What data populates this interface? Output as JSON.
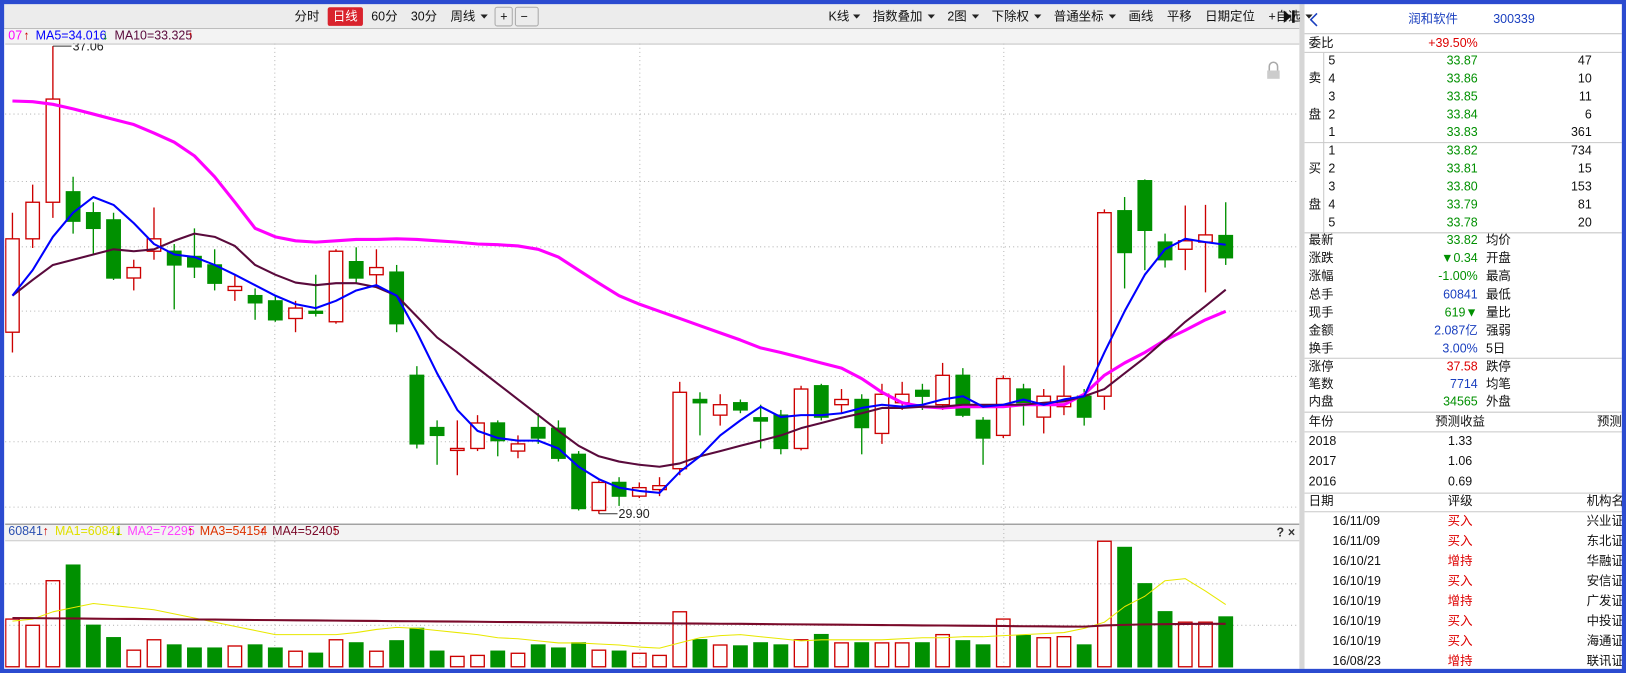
{
  "toolbar": {
    "active": 1,
    "left": [
      {
        "text": "分时"
      },
      {
        "text": "日线"
      },
      {
        "text": "60分"
      },
      {
        "text": "30分"
      },
      {
        "text": "周线",
        "menu": true
      },
      {
        "text": "+"
      },
      {
        "text": "−"
      }
    ],
    "right": [
      {
        "text": "K线",
        "menu": true
      },
      {
        "text": "指数叠加",
        "menu": true
      },
      {
        "text": "2图",
        "menu": true
      },
      {
        "text": "下除权",
        "menu": true
      },
      {
        "text": "普通坐标",
        "menu": true
      },
      {
        "text": "画线"
      },
      {
        "text": "平移"
      },
      {
        "text": "日期定位"
      },
      {
        "text": "+自选",
        "menu": true
      }
    ]
  },
  "chart_data": [
    {
      "type": "candlestick",
      "up_color": "#cc0000",
      "down_color": "#009000",
      "ylim": [
        29.78,
        37.1
      ],
      "high_label": "37.06",
      "low_label": "29.90",
      "legend": [
        {
          "text": "07",
          "arrow": "↑",
          "color": "#ff00ff",
          "arrow_color": "#cc0000"
        },
        {
          "text": "MA5=34.016",
          "arrow": "↓",
          "color": "#0000ff",
          "arrow_color": "#009000"
        },
        {
          "text": "MA10=33.325",
          "arrow": "↑",
          "color": "#5a0a3c",
          "arrow_color": "#cc0000"
        }
      ],
      "open": [
        32.68,
        34.11,
        34.67,
        34.83,
        34.51,
        34.4,
        33.51,
        33.92,
        33.92,
        33.84,
        33.71,
        33.32,
        33.24,
        33.16,
        32.89,
        33.0,
        32.84,
        33.76,
        33.56,
        33.6,
        32.02,
        31.22,
        30.87,
        30.9,
        31.29,
        30.86,
        31.22,
        31.21,
        30.81,
        29.95,
        30.38,
        30.17,
        30.27,
        30.59,
        31.65,
        31.41,
        31.6,
        31.37,
        31.41,
        30.9,
        31.86,
        31.57,
        31.65,
        31.13,
        31.6,
        31.79,
        31.57,
        32.02,
        31.33,
        31.1,
        31.81,
        31.38,
        31.54,
        31.7,
        31.7,
        34.54,
        35.0,
        34.06,
        33.95,
        34.06,
        34.16
      ],
      "high": [
        34.51,
        34.94,
        37.06,
        35.06,
        34.67,
        34.51,
        33.79,
        34.59,
        34.03,
        34.27,
        33.95,
        33.56,
        33.35,
        33.24,
        33.16,
        33.56,
        33.95,
        33.98,
        33.95,
        33.71,
        32.16,
        31.33,
        31.33,
        31.41,
        31.33,
        31.1,
        31.44,
        31.33,
        30.86,
        30.41,
        30.46,
        30.38,
        30.46,
        31.92,
        31.76,
        31.73,
        31.65,
        31.57,
        31.49,
        31.86,
        31.89,
        31.81,
        31.73,
        31.89,
        31.92,
        31.89,
        32.21,
        32.13,
        31.38,
        32.02,
        31.89,
        31.81,
        32.17,
        31.81,
        34.56,
        34.75,
        35.02,
        34.19,
        34.62,
        34.63,
        34.67
      ],
      "low": [
        32.37,
        33.97,
        34.43,
        34.19,
        33.87,
        33.48,
        33.32,
        33.79,
        33.03,
        33.51,
        33.32,
        33.16,
        32.87,
        32.84,
        32.68,
        32.92,
        32.81,
        33.44,
        33.4,
        32.68,
        30.9,
        30.65,
        30.49,
        30.86,
        30.78,
        30.75,
        30.97,
        30.7,
        29.95,
        29.9,
        30.02,
        30.14,
        30.17,
        30.49,
        31.1,
        31.25,
        31.44,
        30.9,
        30.81,
        30.87,
        31.33,
        31.44,
        30.81,
        30.97,
        31.49,
        31.49,
        31.49,
        31.38,
        30.65,
        31.06,
        31.25,
        31.13,
        31.41,
        31.25,
        31.49,
        33.35,
        33.63,
        33.67,
        33.63,
        33.29,
        33.71
      ],
      "close": [
        34.11,
        34.67,
        36.25,
        34.38,
        34.27,
        33.51,
        33.67,
        34.11,
        33.71,
        33.68,
        33.43,
        33.38,
        33.13,
        32.87,
        33.05,
        32.97,
        33.92,
        33.51,
        33.67,
        32.81,
        30.97,
        31.1,
        30.9,
        31.29,
        31.02,
        30.97,
        31.06,
        30.75,
        29.98,
        30.38,
        30.17,
        30.3,
        30.33,
        31.76,
        31.6,
        31.57,
        31.49,
        31.32,
        30.9,
        31.81,
        31.38,
        31.65,
        31.22,
        31.73,
        31.73,
        31.7,
        32.02,
        31.41,
        31.06,
        31.97,
        31.6,
        31.7,
        31.7,
        31.38,
        34.51,
        33.9,
        34.24,
        33.79,
        34.08,
        34.17,
        33.82
      ],
      "lines": [
        {
          "color": "#ff00ff",
          "width": 3,
          "values": [
            36.22,
            36.21,
            36.17,
            36.1,
            36.02,
            35.94,
            35.86,
            35.73,
            35.59,
            35.38,
            35.06,
            34.67,
            34.27,
            34.14,
            34.08,
            34.06,
            34.08,
            34.1,
            34.1,
            34.11,
            34.1,
            34.08,
            34.06,
            34.03,
            34.02,
            34.0,
            33.95,
            33.83,
            33.63,
            33.43,
            33.24,
            33.11,
            33.0,
            32.89,
            32.78,
            32.67,
            32.56,
            32.44,
            32.37,
            32.29,
            32.21,
            32.13,
            31.97,
            31.76,
            31.6,
            31.54,
            31.52,
            31.54,
            31.54,
            31.54,
            31.57,
            31.57,
            31.57,
            31.73,
            32.02,
            32.21,
            32.37,
            32.56,
            32.71,
            32.87,
            33.0
          ]
        },
        {
          "color": "#5a0a3c",
          "width": 2,
          "values": [
            33.24,
            33.48,
            33.71,
            33.79,
            33.87,
            33.95,
            33.92,
            33.95,
            34.08,
            34.19,
            34.14,
            34.0,
            33.71,
            33.56,
            33.44,
            33.4,
            33.43,
            33.43,
            33.37,
            33.24,
            32.92,
            32.6,
            32.37,
            32.13,
            31.89,
            31.65,
            31.41,
            31.17,
            30.94,
            30.78,
            30.7,
            30.65,
            30.62,
            30.67,
            30.78,
            30.86,
            30.94,
            31.02,
            31.1,
            31.21,
            31.29,
            31.37,
            31.44,
            31.52,
            31.52,
            31.54,
            31.54,
            31.57,
            31.57,
            31.57,
            31.57,
            31.6,
            31.62,
            31.7,
            31.81,
            32.05,
            32.29,
            32.56,
            32.84,
            33.08,
            33.33
          ]
        },
        {
          "color": "#0000ff",
          "width": 2,
          "values": [
            33.24,
            33.63,
            34.14,
            34.51,
            34.75,
            34.63,
            34.35,
            34.03,
            33.87,
            33.83,
            33.71,
            33.56,
            33.4,
            33.24,
            33.11,
            33.05,
            33.16,
            33.32,
            33.4,
            33.24,
            32.68,
            32.05,
            31.49,
            31.17,
            31.06,
            31.02,
            31.02,
            30.9,
            30.62,
            30.43,
            30.3,
            30.25,
            30.22,
            30.54,
            30.78,
            31.1,
            31.33,
            31.54,
            31.38,
            31.41,
            31.41,
            31.44,
            31.52,
            31.57,
            31.54,
            31.57,
            31.65,
            31.7,
            31.54,
            31.57,
            31.65,
            31.57,
            31.65,
            31.7,
            32.37,
            33.0,
            33.56,
            33.95,
            34.11,
            34.06,
            34.02
          ]
        }
      ]
    },
    {
      "type": "bar",
      "ylim": [
        0,
        154600
      ],
      "legend": [
        {
          "text": "60841",
          "arrow": "↑",
          "color": "#2a4fb0",
          "arrow_color": "#cc0000"
        },
        {
          "text": "MA1=60841",
          "arrow": "↓",
          "color": "#e0e000",
          "arrow_color": "#009000"
        },
        {
          "text": "MA2=72295",
          "arrow": "↑",
          "color": "#ff44ff",
          "arrow_color": "#cc0000"
        },
        {
          "text": "MA3=54154",
          "arrow": "↑",
          "color": "#dd3300",
          "arrow_color": "#cc0000"
        },
        {
          "text": "MA4=52405",
          "arrow": "↑",
          "color": "#7a0a2a",
          "arrow_color": "#cc0000"
        }
      ],
      "values": [
        58300,
        50700,
        105200,
        124200,
        50700,
        35500,
        20300,
        33000,
        26600,
        22800,
        22800,
        25400,
        26600,
        22800,
        19000,
        16500,
        33000,
        29200,
        19000,
        31700,
        46900,
        19000,
        12700,
        13900,
        19000,
        16500,
        26600,
        22800,
        29200,
        20300,
        19000,
        16500,
        13900,
        67200,
        33000,
        26600,
        25400,
        29200,
        26600,
        33000,
        39300,
        29200,
        29200,
        29200,
        29200,
        29200,
        39300,
        31700,
        26600,
        58300,
        38000,
        35500,
        36800,
        26600,
        153400,
        145800,
        101400,
        67200,
        54500,
        54500,
        60841
      ],
      "lines": [
        {
          "color": "#e8e800",
          "width": 1,
          "values": [
            55800,
            58300,
            67200,
            72200,
            77300,
            74800,
            72200,
            69700,
            64600,
            59600,
            54500,
            49400,
            44400,
            39300,
            39300,
            39300,
            39300,
            41800,
            45600,
            48200,
            46900,
            44400,
            41800,
            39300,
            35500,
            34200,
            31700,
            29200,
            29200,
            27900,
            26600,
            24100,
            22800,
            29200,
            35500,
            38000,
            39300,
            36800,
            34200,
            31700,
            33000,
            33000,
            33000,
            33000,
            34200,
            35500,
            35500,
            36800,
            36800,
            38000,
            39300,
            40600,
            41800,
            46900,
            54500,
            73500,
            86200,
            105200,
            107700,
            92500,
            76000
          ]
        },
        {
          "color": "#7a0a2a",
          "width": 2,
          "values": [
            59600,
            59400,
            59200,
            59000,
            58800,
            58600,
            58400,
            58200,
            58000,
            57800,
            57600,
            57400,
            57200,
            57000,
            56800,
            56600,
            56400,
            56200,
            56000,
            55800,
            55600,
            55400,
            55200,
            55000,
            54800,
            54600,
            54400,
            54200,
            54000,
            53800,
            53600,
            53400,
            53200,
            53000,
            52800,
            52600,
            52400,
            52200,
            52000,
            51800,
            51600,
            51400,
            51200,
            51000,
            50800,
            50600,
            50400,
            50200,
            50000,
            49800,
            49600,
            49400,
            49200,
            49000,
            50500,
            51200,
            51800,
            52100,
            52300,
            52400,
            52405
          ]
        }
      ]
    }
  ],
  "quote": {
    "name": "润和软件",
    "code": "300339",
    "weibi": {
      "label": "委比",
      "value": "+39.50%",
      "color": "#dd0000"
    },
    "sell": {
      "label": [
        "卖",
        "盘"
      ],
      "rows": [
        [
          "5",
          "33.87",
          "47"
        ],
        [
          "4",
          "33.86",
          "10"
        ],
        [
          "3",
          "33.85",
          "11"
        ],
        [
          "2",
          "33.84",
          "6"
        ],
        [
          "1",
          "33.83",
          "361"
        ]
      ]
    },
    "buy": {
      "label": [
        "买",
        "盘"
      ],
      "rows": [
        [
          "1",
          "33.82",
          "734"
        ],
        [
          "2",
          "33.81",
          "15"
        ],
        [
          "3",
          "33.80",
          "153"
        ],
        [
          "4",
          "33.79",
          "81"
        ],
        [
          "5",
          "33.78",
          "20"
        ]
      ]
    },
    "price_color": "#009000",
    "info": [
      {
        "label": "最新",
        "value": "33.82",
        "label2": "均价",
        "color": "#009000"
      },
      {
        "label": "涨跌",
        "value": "▼0.34",
        "label2": "开盘",
        "color": "#009000"
      },
      {
        "label": "涨幅",
        "value": "-1.00%",
        "label2": "最高",
        "color": "#009000"
      },
      {
        "label": "总手",
        "value": "60841",
        "label2": "最低",
        "color": "#1a3fbf"
      },
      {
        "label": "现手",
        "value": "619▼",
        "label2": "量比",
        "color": "#009000"
      },
      {
        "label": "金额",
        "value": "2.087亿",
        "label2": "强弱",
        "color": "#1a3fbf"
      },
      {
        "label": "换手",
        "value": "3.00%",
        "label2": "5日",
        "color": "#1a3fbf"
      }
    ],
    "limits": [
      {
        "label": "涨停",
        "value": "37.58",
        "label2": "跌停",
        "color": "#dd0000"
      },
      {
        "label": "笔数",
        "value": "7714",
        "label2": "均笔",
        "color": "#1a3fbf"
      },
      {
        "label": "内盘",
        "value": "34565",
        "label2": "外盘",
        "color": "#009000"
      }
    ],
    "forecast": {
      "header": [
        "年份",
        "预测收益",
        "预测"
      ],
      "rows": [
        [
          "2018",
          "1.33"
        ],
        [
          "2017",
          "1.06"
        ],
        [
          "2016",
          "0.69"
        ]
      ]
    },
    "ratings": {
      "header": [
        "日期",
        "评级",
        "机构名"
      ],
      "rows": [
        [
          "16/11/09",
          "买入",
          "兴业证"
        ],
        [
          "16/11/09",
          "买入",
          "东北证"
        ],
        [
          "16/10/21",
          "增持",
          "华融证"
        ],
        [
          "16/10/19",
          "买入",
          "安信证"
        ],
        [
          "16/10/19",
          "增持",
          "广发证"
        ],
        [
          "16/10/19",
          "买入",
          "中投证"
        ],
        [
          "16/10/19",
          "买入",
          "海通证"
        ],
        [
          "16/08/23",
          "增持",
          "联讯证"
        ]
      ]
    }
  },
  "panel_icons": [
    "?",
    "×"
  ]
}
